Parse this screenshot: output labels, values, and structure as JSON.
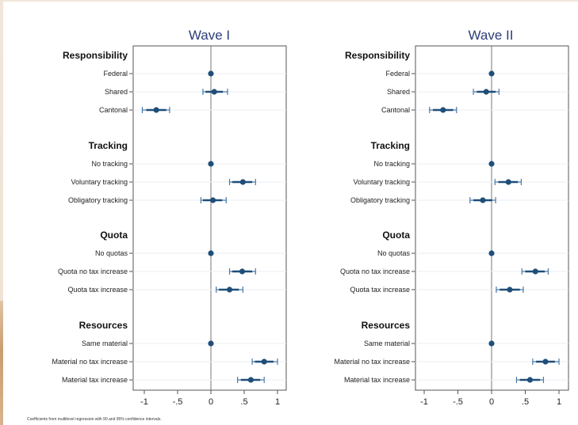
{
  "caption": "Coefficients from multilevel regression with 90 and 95% confidence intervals.",
  "colors": {
    "point": "#1f4e79",
    "ci_inner": "#1f4e79",
    "ci_outer": "#4a7aa8",
    "title": "#2c3e7a",
    "grid": "#e9eef3"
  },
  "chart_data": [
    {
      "type": "scatter",
      "title": "Wave I",
      "xlim": [
        -1.1,
        1.1
      ],
      "ticks": [
        -1,
        -0.5,
        0,
        0.5,
        1
      ],
      "tick_labels": [
        "-1",
        "-.5",
        "0",
        ".5",
        "1"
      ],
      "groups": [
        {
          "label": "Responsibility",
          "items": [
            {
              "label": "Federal",
              "est": 0,
              "ci90": [
                0,
                0
              ],
              "ci95": [
                0,
                0
              ]
            },
            {
              "label": "Shared",
              "est": 0.05,
              "ci90": [
                -0.08,
                0.18
              ],
              "ci95": [
                -0.12,
                0.25
              ]
            },
            {
              "label": "Cantonal",
              "est": -0.82,
              "ci90": [
                -0.97,
                -0.67
              ],
              "ci95": [
                -1.03,
                -0.62
              ]
            }
          ]
        },
        {
          "label": "Tracking",
          "items": [
            {
              "label": "No tracking",
              "est": 0,
              "ci90": [
                0,
                0
              ],
              "ci95": [
                0,
                0
              ]
            },
            {
              "label": "Voluntary tracking",
              "est": 0.48,
              "ci90": [
                0.32,
                0.62
              ],
              "ci95": [
                0.28,
                0.67
              ]
            },
            {
              "label": "Obligatory tracking",
              "est": 0.03,
              "ci90": [
                -0.12,
                0.17
              ],
              "ci95": [
                -0.15,
                0.23
              ]
            }
          ]
        },
        {
          "label": "Quota",
          "items": [
            {
              "label": "No quotas",
              "est": 0,
              "ci90": [
                0,
                0
              ],
              "ci95": [
                0,
                0
              ]
            },
            {
              "label": "Quota no tax increase",
              "est": 0.47,
              "ci90": [
                0.32,
                0.62
              ],
              "ci95": [
                0.28,
                0.67
              ]
            },
            {
              "label": "Quota tax increase",
              "est": 0.28,
              "ci90": [
                0.12,
                0.42
              ],
              "ci95": [
                0.08,
                0.48
              ]
            }
          ]
        },
        {
          "label": "Resources",
          "items": [
            {
              "label": "Same material",
              "est": 0,
              "ci90": [
                0,
                0
              ],
              "ci95": [
                0,
                0
              ]
            },
            {
              "label": "Material no tax increase",
              "est": 0.8,
              "ci90": [
                0.66,
                0.94
              ],
              "ci95": [
                0.62,
                1.0
              ]
            },
            {
              "label": "Material tax increase",
              "est": 0.6,
              "ci90": [
                0.45,
                0.74
              ],
              "ci95": [
                0.4,
                0.8
              ]
            }
          ]
        }
      ]
    },
    {
      "type": "scatter",
      "title": "Wave II",
      "xlim": [
        -1.1,
        1.1
      ],
      "ticks": [
        -1,
        -0.5,
        0,
        0.5,
        1
      ],
      "tick_labels": [
        "-1",
        "-.5",
        "0",
        ".5",
        "1"
      ],
      "groups": [
        {
          "label": "Responsibility",
          "items": [
            {
              "label": "Federal",
              "est": 0,
              "ci90": [
                0,
                0
              ],
              "ci95": [
                0,
                0
              ]
            },
            {
              "label": "Shared",
              "est": -0.08,
              "ci90": [
                -0.22,
                0.06
              ],
              "ci95": [
                -0.27,
                0.11
              ]
            },
            {
              "label": "Cantonal",
              "est": -0.72,
              "ci90": [
                -0.87,
                -0.57
              ],
              "ci95": [
                -0.92,
                -0.52
              ]
            }
          ]
        },
        {
          "label": "Tracking",
          "items": [
            {
              "label": "No tracking",
              "est": 0,
              "ci90": [
                0,
                0
              ],
              "ci95": [
                0,
                0
              ]
            },
            {
              "label": "Voluntary tracking",
              "est": 0.25,
              "ci90": [
                0.1,
                0.39
              ],
              "ci95": [
                0.05,
                0.44
              ]
            },
            {
              "label": "Obligatory tracking",
              "est": -0.13,
              "ci90": [
                -0.27,
                0.01
              ],
              "ci95": [
                -0.32,
                0.06
              ]
            }
          ]
        },
        {
          "label": "Quota",
          "items": [
            {
              "label": "No quotas",
              "est": 0,
              "ci90": [
                0,
                0
              ],
              "ci95": [
                0,
                0
              ]
            },
            {
              "label": "Quota no tax increase",
              "est": 0.65,
              "ci90": [
                0.5,
                0.79
              ],
              "ci95": [
                0.45,
                0.84
              ]
            },
            {
              "label": "Quota tax increase",
              "est": 0.27,
              "ci90": [
                0.12,
                0.42
              ],
              "ci95": [
                0.07,
                0.47
              ]
            }
          ]
        },
        {
          "label": "Resources",
          "items": [
            {
              "label": "Same material",
              "est": 0,
              "ci90": [
                0,
                0
              ],
              "ci95": [
                0,
                0
              ]
            },
            {
              "label": "Material no tax increase",
              "est": 0.8,
              "ci90": [
                0.66,
                0.94
              ],
              "ci95": [
                0.61,
                1.0
              ]
            },
            {
              "label": "Material tax increase",
              "est": 0.57,
              "ci90": [
                0.42,
                0.72
              ],
              "ci95": [
                0.37,
                0.77
              ]
            }
          ]
        }
      ]
    }
  ]
}
